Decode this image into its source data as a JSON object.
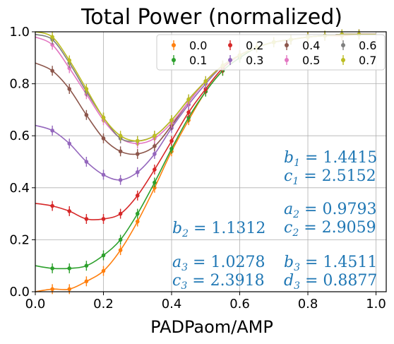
{
  "chart_data": {
    "type": "line",
    "title": "Total Power (normalized)",
    "xlabel": "PADPaom/AMP",
    "ylabel": "",
    "xlim": [
      0.0,
      1.03
    ],
    "ylim": [
      0.0,
      1.0
    ],
    "xticks": [
      "0.0",
      "0.2",
      "0.4",
      "0.6",
      "0.8",
      "1.0"
    ],
    "yticks": [
      "0.0",
      "0.2",
      "0.4",
      "0.6",
      "0.8",
      "1.0"
    ],
    "grid": true,
    "legend": {
      "location": "top-right",
      "columns": 4
    },
    "x": [
      0.0,
      0.05,
      0.1,
      0.15,
      0.2,
      0.25,
      0.3,
      0.35,
      0.4,
      0.45,
      0.5,
      0.55,
      0.6,
      0.65,
      0.7,
      0.75,
      0.8,
      0.85,
      0.9,
      0.95,
      1.0
    ],
    "series": [
      {
        "name": "0.0",
        "color": "#ff7f0e",
        "values": [
          0.0,
          0.01,
          0.01,
          0.04,
          0.08,
          0.16,
          0.27,
          0.4,
          0.54,
          0.66,
          0.77,
          0.85,
          0.9,
          0.94,
          0.96,
          0.97,
          0.98,
          0.985,
          0.985,
          0.99,
          0.99
        ]
      },
      {
        "name": "0.1",
        "color": "#2ca02c",
        "values": [
          0.1,
          0.09,
          0.09,
          0.1,
          0.14,
          0.2,
          0.3,
          0.42,
          0.55,
          0.67,
          0.77,
          0.85,
          0.9,
          0.94,
          0.96,
          0.97,
          0.98,
          0.985,
          0.99,
          0.99,
          0.99
        ]
      },
      {
        "name": "0.2",
        "color": "#d62728",
        "values": [
          0.34,
          0.33,
          0.31,
          0.28,
          0.28,
          0.3,
          0.37,
          0.47,
          0.58,
          0.69,
          0.78,
          0.86,
          0.91,
          0.94,
          0.96,
          0.97,
          0.98,
          0.985,
          0.99,
          0.99,
          0.99
        ]
      },
      {
        "name": "0.3",
        "color": "#9467bd",
        "values": [
          0.64,
          0.62,
          0.57,
          0.5,
          0.45,
          0.43,
          0.46,
          0.53,
          0.63,
          0.72,
          0.8,
          0.87,
          0.91,
          0.94,
          0.96,
          0.97,
          0.98,
          0.985,
          0.99,
          0.99,
          0.99
        ]
      },
      {
        "name": "0.4",
        "color": "#8c564b",
        "values": [
          0.88,
          0.85,
          0.78,
          0.68,
          0.59,
          0.54,
          0.53,
          0.56,
          0.64,
          0.73,
          0.81,
          0.87,
          0.91,
          0.94,
          0.96,
          0.97,
          0.98,
          0.985,
          0.99,
          0.99,
          0.99
        ]
      },
      {
        "name": "0.5",
        "color": "#e377c2",
        "values": [
          0.98,
          0.95,
          0.86,
          0.76,
          0.66,
          0.59,
          0.57,
          0.59,
          0.65,
          0.73,
          0.81,
          0.87,
          0.91,
          0.94,
          0.96,
          0.97,
          0.98,
          0.985,
          0.99,
          0.99,
          0.99
        ]
      },
      {
        "name": "0.6",
        "color": "#7f7f7f",
        "values": [
          0.99,
          0.97,
          0.88,
          0.77,
          0.67,
          0.59,
          0.58,
          0.6,
          0.66,
          0.74,
          0.81,
          0.87,
          0.91,
          0.94,
          0.96,
          0.97,
          0.98,
          0.985,
          0.99,
          0.99,
          0.99
        ]
      },
      {
        "name": "0.7",
        "color": "#bcbd22",
        "values": [
          1.0,
          0.98,
          0.89,
          0.78,
          0.67,
          0.6,
          0.58,
          0.6,
          0.66,
          0.74,
          0.81,
          0.87,
          0.91,
          0.94,
          0.96,
          0.97,
          0.98,
          0.985,
          0.99,
          0.99,
          0.99
        ]
      }
    ],
    "annotations": [
      {
        "color": "#1f77b4",
        "lines": [
          [
            "b",
            "1",
            " = 1.4415"
          ],
          [
            "c",
            "1",
            " = 2.5152"
          ]
        ]
      },
      {
        "color": "#1f77b4",
        "lines": [
          [
            "a",
            "2",
            " = 0.9793"
          ],
          [
            "c",
            "2",
            " = 2.9059"
          ]
        ]
      },
      {
        "color": "#1f77b4",
        "lines": [
          [
            "b",
            "2",
            " = 1.1312"
          ]
        ]
      },
      {
        "color": "#1f77b4",
        "lines": [
          [
            "a",
            "3",
            " = 1.0278"
          ],
          [
            "c",
            "3",
            " = 2.3918"
          ]
        ]
      },
      {
        "color": "#1f77b4",
        "lines": [
          [
            "b",
            "3",
            " = 1.4511"
          ],
          [
            "d",
            "3",
            " = 0.8877"
          ]
        ]
      }
    ]
  }
}
